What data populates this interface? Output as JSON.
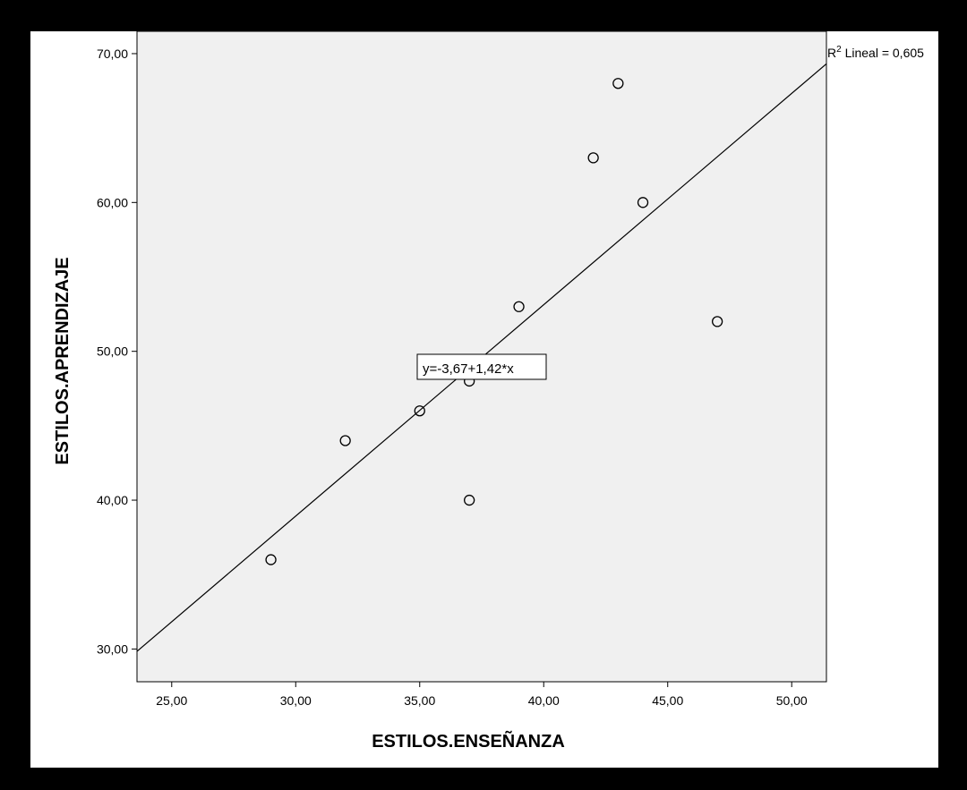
{
  "chart_data": {
    "type": "scatter",
    "xlabel": "ESTILOS.ENSEÑANZA",
    "ylabel": "ESTILOS.APRENDIZAJE",
    "xlim": [
      23.6,
      51.4
    ],
    "ylim": [
      27.8,
      71.5
    ],
    "x_ticks": [
      25,
      30,
      35,
      40,
      45,
      50
    ],
    "x_tick_labels": [
      "25,00",
      "30,00",
      "35,00",
      "40,00",
      "45,00",
      "50,00"
    ],
    "y_ticks": [
      30,
      40,
      50,
      60,
      70
    ],
    "y_tick_labels": [
      "30,00",
      "40,00",
      "50,00",
      "60,00",
      "70,00"
    ],
    "points": [
      {
        "x": 29,
        "y": 36
      },
      {
        "x": 32,
        "y": 44
      },
      {
        "x": 35,
        "y": 46
      },
      {
        "x": 37,
        "y": 48
      },
      {
        "x": 37,
        "y": 40
      },
      {
        "x": 39,
        "y": 53
      },
      {
        "x": 42,
        "y": 63
      },
      {
        "x": 43,
        "y": 68
      },
      {
        "x": 44,
        "y": 60
      },
      {
        "x": 47,
        "y": 52
      }
    ],
    "fit_line": {
      "intercept": -3.67,
      "slope": 1.42
    },
    "equation_label": "y=-3,67+1,42*x",
    "r2_prefix": "R",
    "r2_sup": "2",
    "r2_suffix": " Lineal = 0,605",
    "grid": false,
    "plot_background": "#f0f0f0"
  }
}
